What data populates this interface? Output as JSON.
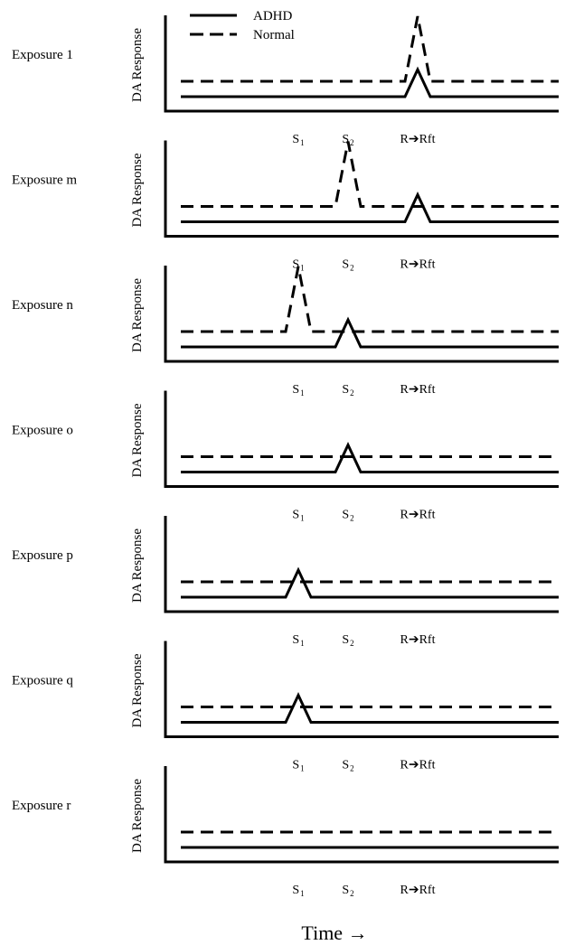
{
  "chart_data": {
    "type": "line",
    "legend": [
      {
        "name": "ADHD",
        "style": "solid"
      },
      {
        "name": "Normal",
        "style": "dashed"
      }
    ],
    "legend_position": "top-left",
    "ylabel": "DA Response",
    "xlabel": "Time →",
    "tick_labels": [
      {
        "main": "S",
        "sub": "1"
      },
      {
        "main": "S",
        "sub": "2"
      },
      {
        "main": "R➔Rft",
        "sub": ""
      }
    ],
    "grid": false,
    "colors": {
      "line": "#000000",
      "background": "#ffffff"
    },
    "panels": [
      {
        "label": "Exposure 1",
        "adhd_peak": "R➔Rft",
        "adhd_peak_height": 1.0,
        "normal_peak": "R➔Rft",
        "normal_peak_height": 2.4
      },
      {
        "label": "Exposure m",
        "adhd_peak": "R➔Rft",
        "adhd_peak_height": 1.0,
        "normal_peak": "S2",
        "normal_peak_height": 2.4
      },
      {
        "label": "Exposure n",
        "adhd_peak": "S2",
        "adhd_peak_height": 1.0,
        "normal_peak": "S1",
        "normal_peak_height": 2.4
      },
      {
        "label": "Exposure o",
        "adhd_peak": "S2",
        "adhd_peak_height": 1.0,
        "normal_peak": null,
        "normal_peak_height": 0
      },
      {
        "label": "Exposure p",
        "adhd_peak": "S1",
        "adhd_peak_height": 1.0,
        "normal_peak": null,
        "normal_peak_height": 0
      },
      {
        "label": "Exposure q",
        "adhd_peak": "S1",
        "adhd_peak_height": 1.0,
        "normal_peak": null,
        "normal_peak_height": 0
      },
      {
        "label": "Exposure r",
        "adhd_peak": null,
        "adhd_peak_height": 0,
        "normal_peak": null,
        "normal_peak_height": 0
      }
    ]
  }
}
